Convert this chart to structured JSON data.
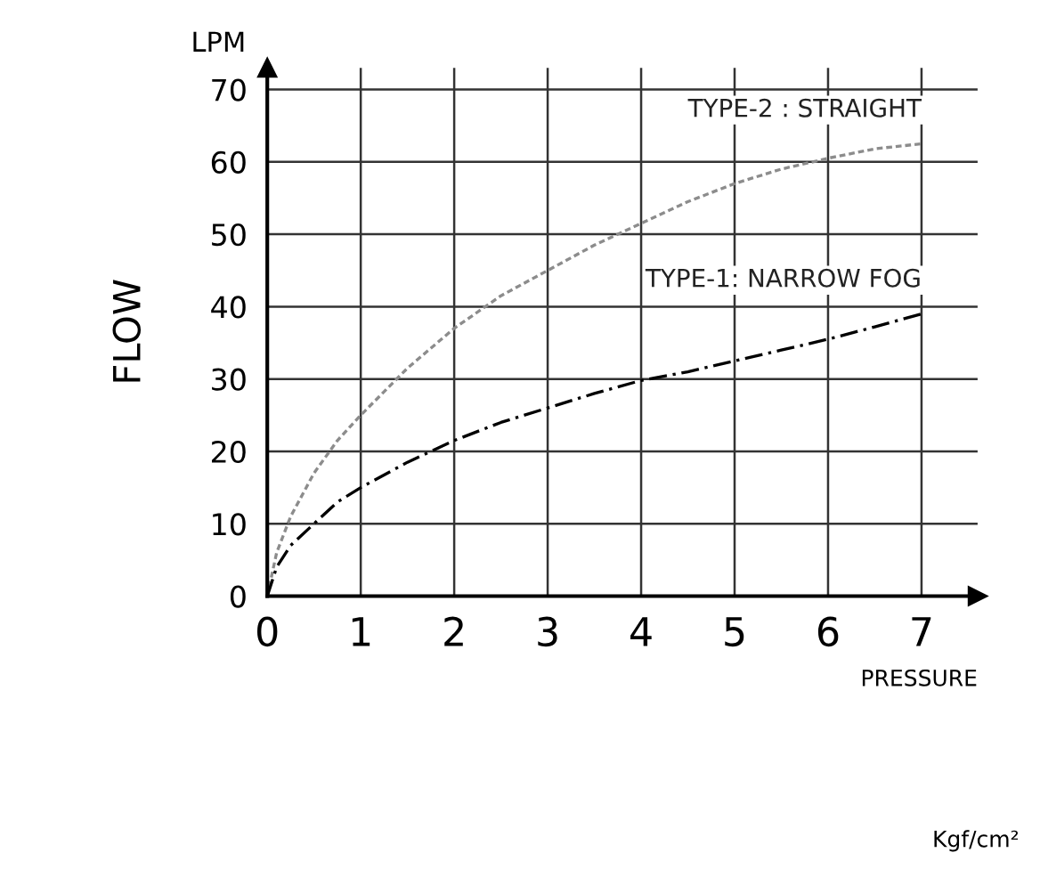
{
  "chart_data": {
    "type": "line",
    "ylabel": "FLOW",
    "xlabel": "PRESSURE",
    "annotations": [
      "LPM",
      "Kgf/cm²"
    ],
    "xlim": [
      0,
      7.6
    ],
    "ylim": [
      0,
      73
    ],
    "xticks": [
      0,
      1,
      2,
      3,
      4,
      5,
      6,
      7
    ],
    "yticks": [
      0,
      10,
      20,
      30,
      40,
      50,
      60,
      70
    ],
    "grid": true,
    "marker": "none",
    "series": [
      {
        "name": "TYPE-2 : STRAIGHT",
        "color": "#8c8c8c",
        "line_style": "dotted",
        "x": [
          0,
          0.1,
          0.25,
          0.5,
          0.75,
          1,
          1.5,
          2,
          2.5,
          3,
          3.5,
          4,
          4.5,
          5,
          5.5,
          6,
          6.5,
          7
        ],
        "values": [
          0,
          6,
          11,
          17,
          21.5,
          25,
          31.5,
          37,
          41.5,
          45,
          48.5,
          51.5,
          54.5,
          57,
          59,
          60.5,
          61.8,
          62.5
        ]
      },
      {
        "name": "TYPE-1: NARROW FOG",
        "color": "#000000",
        "line_style": "dashed",
        "x": [
          0,
          0.1,
          0.25,
          0.5,
          0.75,
          1,
          1.5,
          2,
          2.5,
          3,
          3.5,
          4,
          4.5,
          5,
          5.5,
          6,
          6.5,
          7
        ],
        "values": [
          0,
          4,
          7,
          10,
          13,
          15,
          18.5,
          21.5,
          24,
          26,
          28,
          29.8,
          31,
          32.5,
          34,
          35.5,
          37.2,
          39
        ]
      }
    ]
  }
}
